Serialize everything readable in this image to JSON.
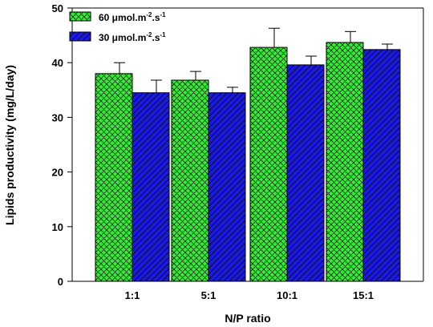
{
  "chart_data": {
    "type": "bar",
    "categories": [
      "1:1",
      "5:1",
      "10:1",
      "15:1"
    ],
    "series": [
      {
        "name_base": "60 μmol.m",
        "name_sup1": "-2",
        "name_mid": ".s",
        "name_sup2": "-1",
        "values": [
          38.0,
          36.8,
          42.8,
          43.7
        ],
        "errors": [
          2.0,
          1.6,
          3.5,
          2.0
        ],
        "color": "#33ee33",
        "pattern": "crosshatch"
      },
      {
        "name_base": "30 μmol.m",
        "name_sup1": "-2",
        "name_mid": ".s",
        "name_sup2": "-1",
        "values": [
          34.5,
          34.5,
          39.6,
          42.4
        ],
        "errors": [
          2.3,
          1.0,
          1.6,
          1.0
        ],
        "color": "#1a1ae6",
        "pattern": "diagonal"
      }
    ],
    "xlabel": "N/P ratio",
    "ylabel": "Lipids productivity (mg/L/day)",
    "ylim": [
      0,
      50
    ],
    "yticks": [
      0,
      10,
      20,
      30,
      40,
      50
    ],
    "legend_position": "top-left",
    "grid": false
  }
}
